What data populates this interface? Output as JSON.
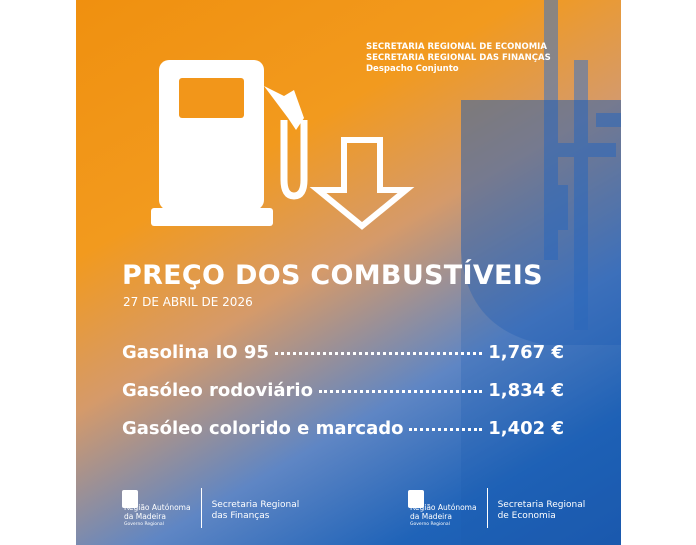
{
  "header": {
    "lines": [
      "SECRETARIA REGIONAL DE ECONOMIA",
      "SECRETARIA REGIONAL DAS FINANÇAS",
      "Despacho Conjunto"
    ]
  },
  "title": "PREÇO DOS COMBUSTÍVEIS",
  "date": "27 DE ABRIL DE 2026",
  "prices": [
    {
      "name": "Gasolina IO 95",
      "price": "1,767 €"
    },
    {
      "name": "Gasóleo rodoviário",
      "price": "1,834 €"
    },
    {
      "name": "Gasóleo colorido e marcado",
      "price": "1,402 €"
    }
  ],
  "footer": {
    "logos": [
      {
        "region": [
          "Região Autónoma",
          "da Madeira"
        ],
        "government": "Governo Regional",
        "secretariat": [
          "Secretaria Regional",
          "das Finanças"
        ]
      },
      {
        "region": [
          "Região Autónoma",
          "da Madeira"
        ],
        "government": "Governo Regional",
        "secretariat": [
          "Secretaria Regional",
          "de Economia"
        ]
      }
    ]
  }
}
